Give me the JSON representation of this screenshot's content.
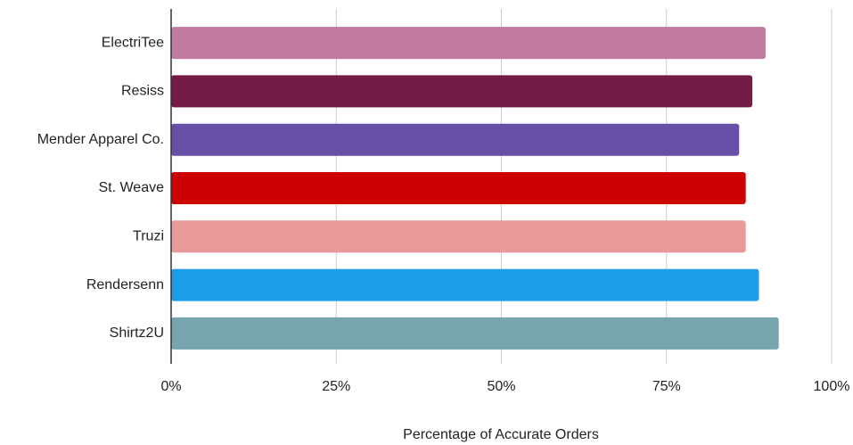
{
  "chart_data": {
    "type": "hbar",
    "x_label": "Percentage of Accurate Orders",
    "categories": [
      "ElectriTee",
      "Resiss",
      "Mender Apparel Co.",
      "St. Weave",
      "Truzi",
      "Rendersenn",
      "Shirtz2U"
    ],
    "values": [
      90,
      88,
      86,
      87,
      87,
      89,
      92
    ],
    "colors": [
      "#c27ba0",
      "#741b47",
      "#674ea7",
      "#cc0000",
      "#ea9999",
      "#1b9de8",
      "#76a5af"
    ],
    "xlim": [
      0,
      100
    ],
    "xticks": [
      {
        "value": 0,
        "label": "0%"
      },
      {
        "value": 25,
        "label": "25%"
      },
      {
        "value": 50,
        "label": "50%"
      },
      {
        "value": 75,
        "label": "75%"
      },
      {
        "value": 100,
        "label": "100%"
      }
    ],
    "grid": true
  }
}
